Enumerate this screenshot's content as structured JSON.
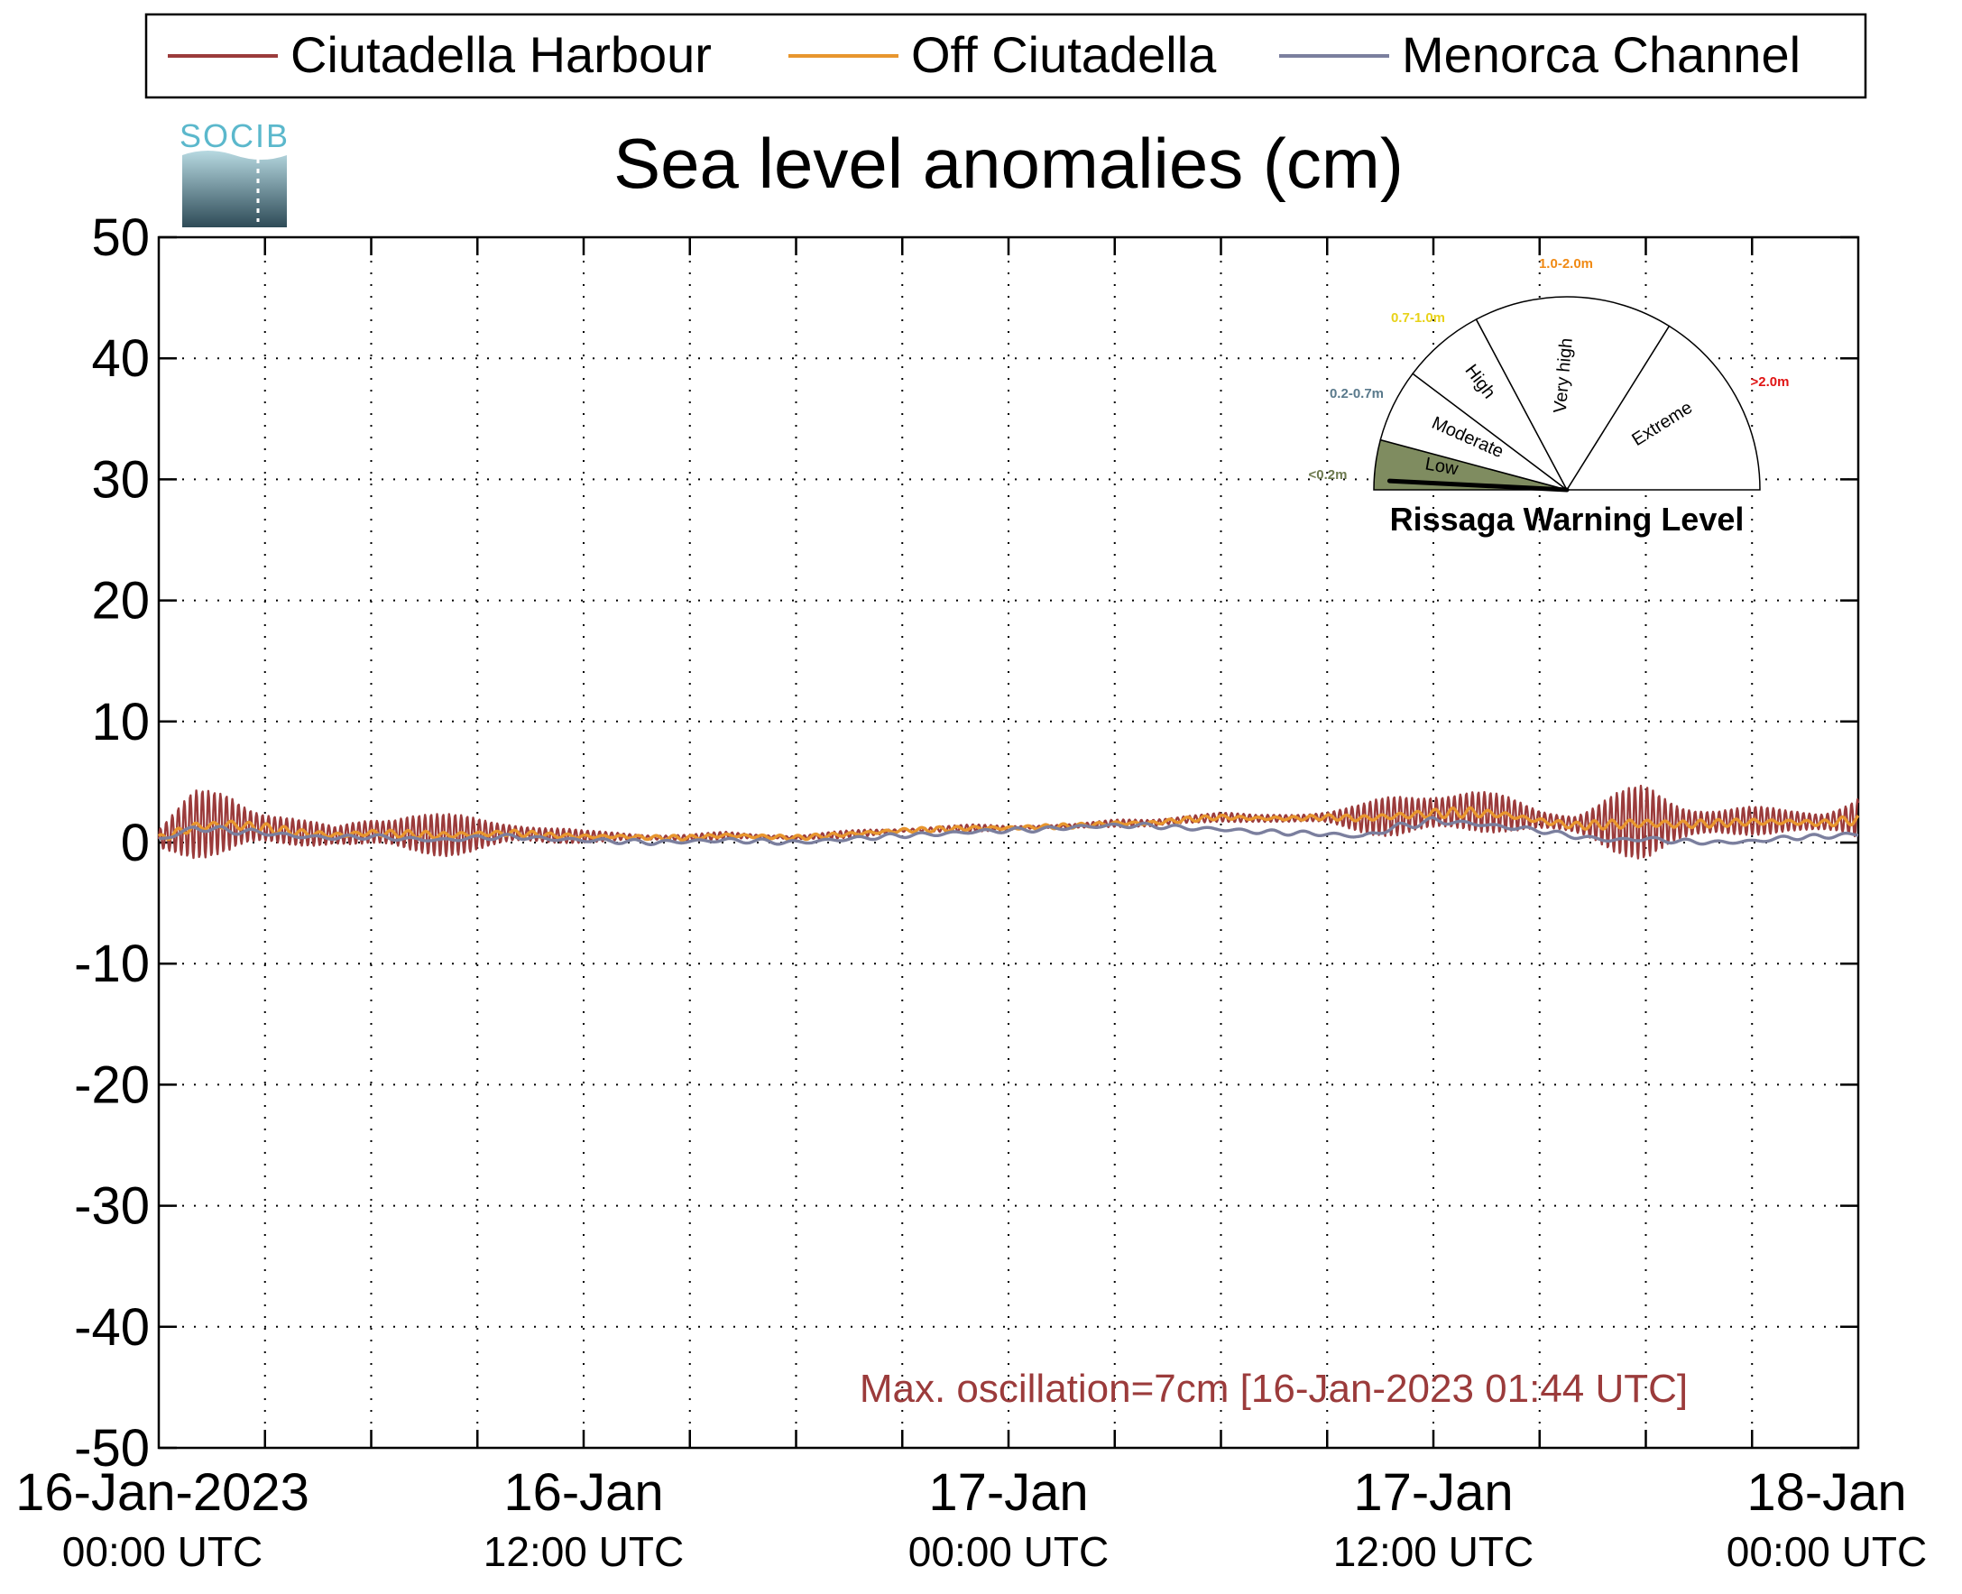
{
  "chart_data": {
    "type": "line",
    "title": "Sea level anomalies (cm)",
    "ylim": [
      -50,
      50
    ],
    "yticks": [
      50,
      40,
      30,
      20,
      10,
      0,
      -10,
      -20,
      -30,
      -40,
      -50
    ],
    "xlim_hours": [
      0,
      48
    ],
    "x_tick_labels": [
      {
        "hour": 0,
        "line1": "16-Jan-2023",
        "line2": "00:00 UTC"
      },
      {
        "hour": 12,
        "line1": "16-Jan",
        "line2": "12:00 UTC"
      },
      {
        "hour": 24,
        "line1": "17-Jan",
        "line2": "00:00 UTC"
      },
      {
        "hour": 36,
        "line1": "17-Jan",
        "line2": "12:00 UTC"
      },
      {
        "hour": 48,
        "line1": "18-Jan",
        "line2": "00:00 UTC"
      }
    ],
    "grid": true,
    "legend_position": "top",
    "series": [
      {
        "name": "Ciutadella Harbour",
        "color": "#9b3b3b",
        "x": [
          0,
          1,
          2,
          3,
          4,
          5,
          6,
          7,
          8,
          9,
          10,
          11,
          12,
          13,
          14,
          15,
          16,
          17,
          18,
          19,
          20,
          21,
          22,
          23,
          24,
          25,
          26,
          27,
          28,
          29,
          30,
          31,
          32,
          33,
          34,
          35,
          36,
          37,
          38,
          39,
          40,
          41,
          42,
          43,
          44,
          45,
          46,
          47,
          48
        ],
        "y": [
          0.3,
          1.5,
          1.6,
          1.2,
          0.8,
          0.6,
          0.9,
          0.8,
          0.6,
          0.7,
          0.8,
          0.6,
          0.5,
          0.5,
          0.4,
          0.4,
          0.6,
          0.5,
          0.4,
          0.6,
          0.8,
          1.0,
          1.1,
          1.2,
          1.2,
          1.3,
          1.4,
          1.6,
          1.6,
          1.9,
          2.1,
          2.0,
          2.0,
          2.1,
          2.0,
          2.2,
          2.5,
          2.6,
          2.4,
          1.9,
          1.5,
          1.6,
          1.7,
          1.6,
          1.7,
          1.8,
          1.8,
          1.7,
          2.0
        ],
        "amplitude_cm": [
          1.0,
          2.8,
          3.2,
          2.0,
          1.2,
          0.7,
          1.6,
          2.2,
          1.8,
          1.5,
          1.2,
          0.8,
          0.5,
          0.4,
          0.3,
          0.3,
          0.3,
          0.2,
          0.2,
          0.3,
          0.3,
          0.2,
          0.3,
          0.3,
          0.2,
          0.2,
          0.2,
          0.3,
          0.4,
          0.5,
          0.4,
          0.3,
          0.5,
          0.6,
          1.2,
          2.0,
          2.4,
          2.0,
          1.5,
          1.0,
          1.2,
          2.5,
          3.2,
          2.2,
          1.4,
          1.2,
          1.0,
          1.2,
          2.2
        ]
      },
      {
        "name": "Off Ciutadella",
        "color": "#e8962e",
        "x": [
          0,
          1,
          2,
          3,
          4,
          5,
          6,
          7,
          8,
          9,
          10,
          11,
          12,
          13,
          14,
          15,
          16,
          17,
          18,
          19,
          20,
          21,
          22,
          23,
          24,
          25,
          26,
          27,
          28,
          29,
          30,
          31,
          32,
          33,
          34,
          35,
          36,
          37,
          38,
          39,
          40,
          41,
          42,
          43,
          44,
          45,
          46,
          47,
          48
        ],
        "y": [
          0.3,
          1.3,
          1.5,
          1.2,
          0.8,
          0.6,
          0.8,
          0.7,
          0.6,
          0.7,
          0.8,
          0.6,
          0.5,
          0.5,
          0.4,
          0.4,
          0.6,
          0.5,
          0.4,
          0.6,
          0.8,
          1.0,
          1.1,
          1.2,
          1.2,
          1.3,
          1.4,
          1.6,
          1.6,
          1.9,
          2.1,
          2.0,
          2.0,
          2.1,
          2.0,
          2.2,
          2.4,
          2.5,
          2.3,
          1.8,
          1.4,
          1.5,
          1.6,
          1.5,
          1.6,
          1.7,
          1.7,
          1.6,
          1.9
        ],
        "amplitude_cm": [
          0.3,
          0.5,
          0.5,
          0.4,
          0.3,
          0.3,
          0.3,
          0.3,
          0.3,
          0.3,
          0.3,
          0.2,
          0.2,
          0.2,
          0.2,
          0.2,
          0.2,
          0.2,
          0.2,
          0.2,
          0.2,
          0.2,
          0.2,
          0.2,
          0.2,
          0.2,
          0.2,
          0.2,
          0.2,
          0.2,
          0.2,
          0.2,
          0.2,
          0.2,
          0.3,
          0.4,
          0.4,
          0.4,
          0.3,
          0.3,
          0.3,
          0.4,
          0.5,
          0.4,
          0.3,
          0.3,
          0.3,
          0.3,
          0.4
        ]
      },
      {
        "name": "Menorca Channel",
        "color": "#7b7f9e",
        "x": [
          0,
          1,
          2,
          3,
          4,
          5,
          6,
          7,
          8,
          9,
          10,
          11,
          12,
          13,
          14,
          15,
          16,
          17,
          18,
          19,
          20,
          21,
          22,
          23,
          24,
          25,
          26,
          27,
          28,
          29,
          30,
          31,
          32,
          33,
          34,
          35,
          36,
          37,
          38,
          39,
          40,
          41,
          42,
          43,
          44,
          45,
          46,
          47,
          48
        ],
        "y": [
          0.2,
          1.2,
          1.0,
          0.8,
          0.5,
          0.4,
          0.5,
          0.3,
          0.2,
          0.4,
          0.5,
          0.3,
          0.2,
          0.1,
          0.0,
          0.1,
          0.2,
          0.1,
          0.0,
          0.2,
          0.4,
          0.6,
          0.7,
          0.9,
          1.0,
          1.1,
          1.3,
          1.4,
          1.4,
          1.2,
          1.1,
          0.9,
          0.8,
          0.7,
          0.5,
          1.3,
          1.8,
          1.6,
          1.3,
          1.0,
          0.5,
          0.2,
          0.3,
          0.1,
          0.0,
          0.1,
          0.4,
          0.5,
          0.7
        ],
        "amplitude_cm": [
          0.2,
          0.3,
          0.3,
          0.2,
          0.2,
          0.2,
          0.2,
          0.2,
          0.2,
          0.2,
          0.2,
          0.2,
          0.2,
          0.2,
          0.2,
          0.2,
          0.2,
          0.2,
          0.2,
          0.2,
          0.2,
          0.2,
          0.2,
          0.2,
          0.2,
          0.2,
          0.2,
          0.2,
          0.2,
          0.2,
          0.2,
          0.2,
          0.2,
          0.2,
          0.2,
          0.3,
          0.3,
          0.2,
          0.2,
          0.2,
          0.2,
          0.2,
          0.2,
          0.2,
          0.2,
          0.2,
          0.2,
          0.2,
          0.2
        ]
      }
    ],
    "annotation": {
      "text": "Max. oscillation=7cm [16-Jan-2023 01:44 UTC]",
      "color": "#9b3b3b"
    }
  },
  "logo": {
    "text": "SOCIB"
  },
  "gauge": {
    "title": "Rissaga Warning Level",
    "needle_value_m": 0.07,
    "active_sector": "Low",
    "sectors": [
      {
        "label": "Low",
        "range": "<0.2m",
        "range_color": "#6d7a4f",
        "fill": "#7f8c60"
      },
      {
        "label": "Moderate",
        "range": "0.2-0.7m",
        "range_color": "#5a7a8c",
        "fill": "#ffffff"
      },
      {
        "label": "High",
        "range": "0.7-1.0m",
        "range_color": "#e8d219",
        "fill": "#ffffff"
      },
      {
        "label": "Very high",
        "range": "1.0-2.0m",
        "range_color": "#f08a14",
        "fill": "#ffffff"
      },
      {
        "label": "Extreme",
        "range": ">2.0m",
        "range_color": "#e01414",
        "fill": "#ffffff"
      }
    ]
  }
}
